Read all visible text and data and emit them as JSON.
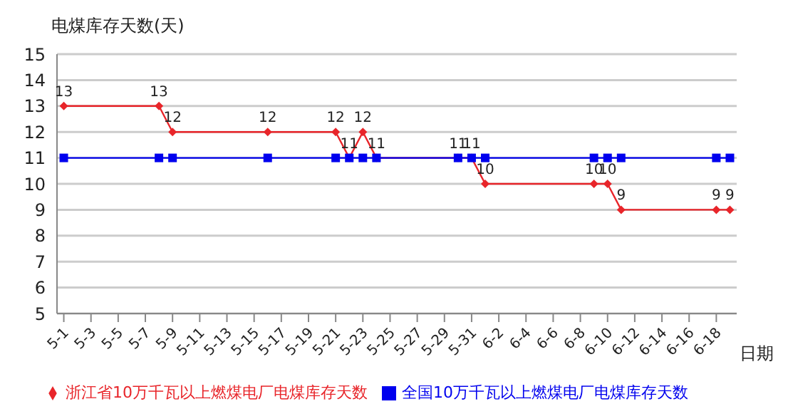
{
  "chart_data": {
    "type": "line",
    "ylabel": "电煤库存天数(天)",
    "xlabel": "日期",
    "xlim": [
      "--04-30T12:00",
      "--06-19T12:00"
    ],
    "xticks": [
      {
        "value": "--05-01",
        "label": "5-1"
      },
      {
        "value": "--05-03",
        "label": "5-3"
      },
      {
        "value": "--05-05",
        "label": "5-5"
      },
      {
        "value": "--05-07",
        "label": "5-7"
      },
      {
        "value": "--05-09",
        "label": "5-9"
      },
      {
        "value": "--05-11",
        "label": "5-11"
      },
      {
        "value": "--05-13",
        "label": "5-13"
      },
      {
        "value": "--05-15",
        "label": "5-15"
      },
      {
        "value": "--05-17",
        "label": "5-17"
      },
      {
        "value": "--05-19",
        "label": "5-19"
      },
      {
        "value": "--05-21",
        "label": "5-21"
      },
      {
        "value": "--05-23",
        "label": "5-23"
      },
      {
        "value": "--05-25",
        "label": "5-25"
      },
      {
        "value": "--05-27",
        "label": "5-27"
      },
      {
        "value": "--05-29",
        "label": "5-29"
      },
      {
        "value": "--05-31",
        "label": "5-31"
      },
      {
        "value": "--06-02",
        "label": "6-2"
      },
      {
        "value": "--06-04",
        "label": "6-4"
      },
      {
        "value": "--06-06",
        "label": "6-6"
      },
      {
        "value": "--06-08",
        "label": "6-8"
      },
      {
        "value": "--06-10",
        "label": "6-10"
      },
      {
        "value": "--06-12",
        "label": "6-12"
      },
      {
        "value": "--06-14",
        "label": "6-14"
      },
      {
        "value": "--06-16",
        "label": "6-16"
      },
      {
        "value": "--06-18",
        "label": "6-18"
      }
    ],
    "ylim": [
      5,
      15
    ],
    "yticks": [
      5,
      6,
      7,
      8,
      9,
      10,
      11,
      12,
      13,
      14,
      15
    ],
    "grid": "y",
    "legend": "bottom",
    "x": [
      "--05-01",
      "--05-08",
      "--05-09",
      "--05-16",
      "--05-21",
      "--05-22",
      "--05-23",
      "--05-24",
      "--05-30",
      "--05-31",
      "--06-01",
      "--06-09",
      "--06-10",
      "--06-11",
      "--06-18",
      "--06-19"
    ],
    "series": [
      {
        "name": "浙江省10万千瓦以上燃煤电厂电煤库存天数",
        "color": "#e8252a",
        "marker": "diamond",
        "values": [
          13,
          13,
          12,
          12,
          12,
          11,
          12,
          11,
          11,
          11,
          10,
          10,
          10,
          9,
          9,
          9
        ],
        "value_labels": [
          "13",
          "13",
          "12",
          "12",
          "12",
          "11",
          "12",
          "11",
          "11",
          "11",
          "10",
          "10",
          "10",
          "9",
          "9",
          "9"
        ]
      },
      {
        "name": "全国10万千瓦以上燃煤电厂电煤库存天数",
        "color": "#0000ee",
        "marker": "square",
        "values": [
          11,
          11,
          11,
          11,
          11,
          11,
          11,
          11,
          11,
          11,
          11,
          11,
          11,
          11,
          11,
          11
        ]
      }
    ]
  }
}
